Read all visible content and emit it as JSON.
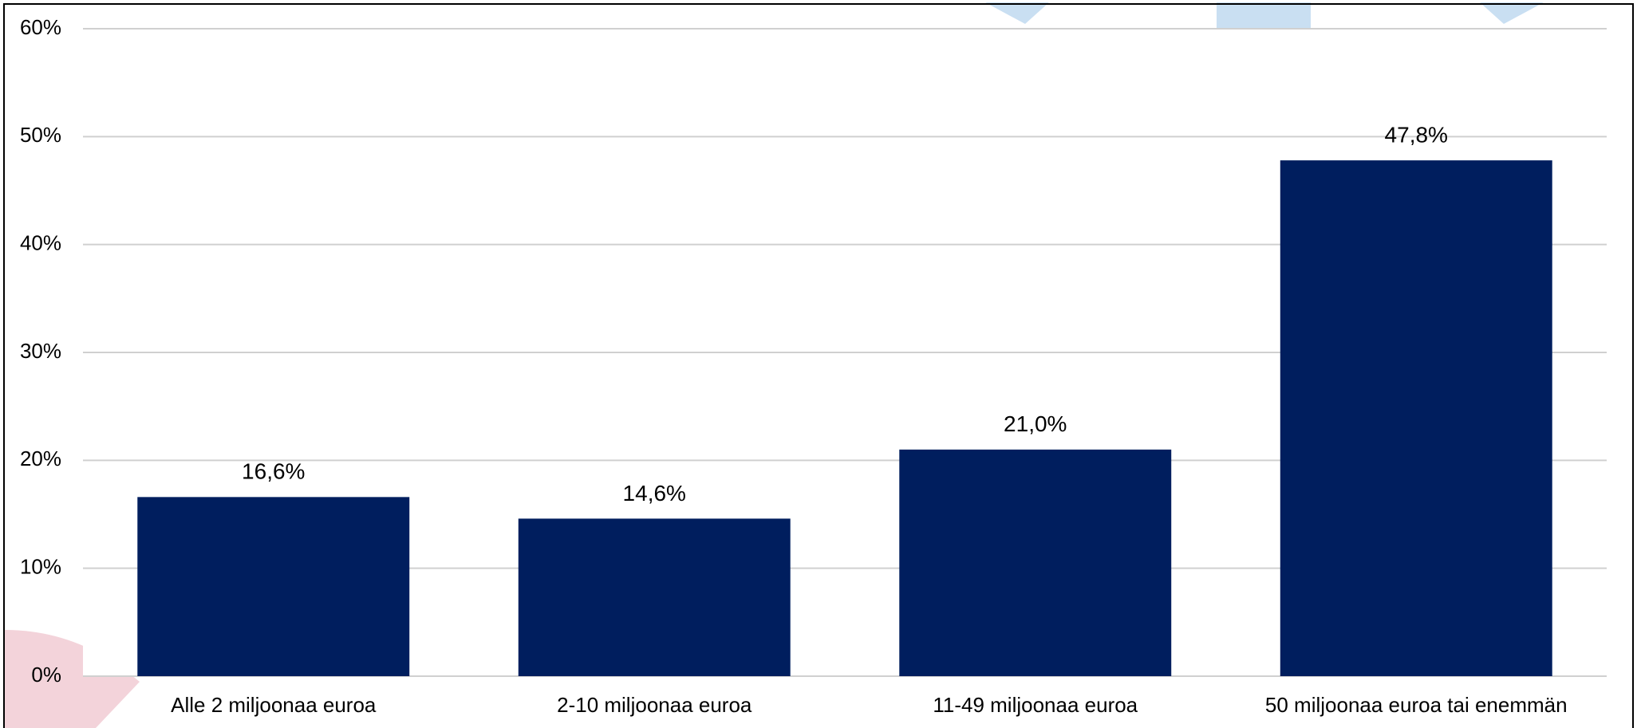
{
  "chart_data": {
    "type": "bar",
    "categories": [
      "Alle 2 miljoonaa euroa",
      "2-10 miljoonaa euroa",
      "11-49 miljoonaa euroa",
      "50 miljoonaa euroa tai enemmän"
    ],
    "values": [
      16.6,
      14.6,
      21.0,
      47.8
    ],
    "data_labels": [
      "16,6%",
      "14,6%",
      "21,0%",
      "47,8%"
    ],
    "y_ticks": [
      {
        "value": 0,
        "label": "0%"
      },
      {
        "value": 10,
        "label": "10%"
      },
      {
        "value": 20,
        "label": "20%"
      },
      {
        "value": 30,
        "label": "30%"
      },
      {
        "value": 40,
        "label": "40%"
      },
      {
        "value": 50,
        "label": "50%"
      },
      {
        "value": 60,
        "label": "60%"
      }
    ],
    "ylim": [
      0,
      60
    ],
    "grid": true,
    "legend": "none",
    "colors": {
      "bar": "#001E5E",
      "grid": "#D0D0D0",
      "frame": "#000000",
      "decor_blue": "#C9DFF2",
      "decor_pink": "#F3D3DA"
    }
  }
}
